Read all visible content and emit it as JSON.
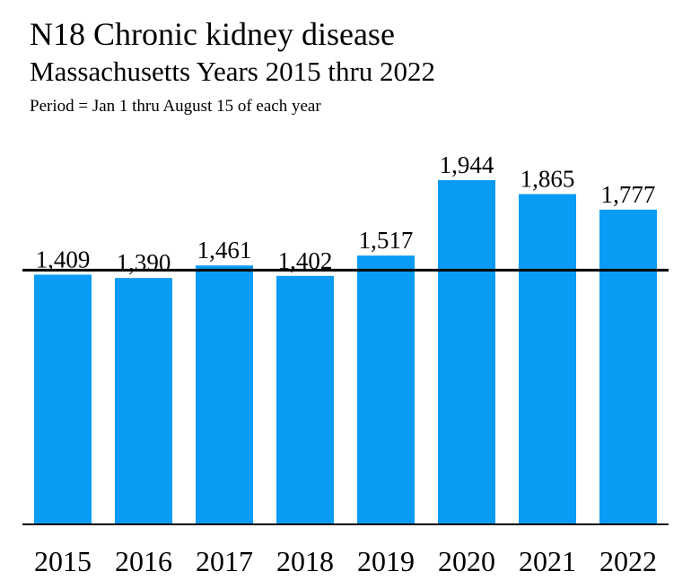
{
  "header": {
    "title": "N18 Chronic kidney disease",
    "subtitle": "Massachusetts Years 2015 thru 2022",
    "period": "Period = Jan 1 thru August 15 of each year"
  },
  "chart_data": {
    "type": "bar",
    "title": "N18 Chronic kidney disease",
    "subtitle": "Massachusetts Years 2015 thru 2022",
    "categories": [
      "2015",
      "2016",
      "2017",
      "2018",
      "2019",
      "2020",
      "2021",
      "2022"
    ],
    "values": [
      1409,
      1390,
      1461,
      1402,
      1517,
      1944,
      1865,
      1777
    ],
    "value_labels": [
      "1,409",
      "1,390",
      "1,461",
      "1,402",
      "1,517",
      "1,944",
      "1,865",
      "1,777"
    ],
    "baseline_value": 1409,
    "xlabel": "",
    "ylabel": "",
    "ylim": [
      0,
      2050
    ],
    "grid": false,
    "legend": "none",
    "bar_color": "#0a9bf5",
    "line_color": "#000000"
  }
}
